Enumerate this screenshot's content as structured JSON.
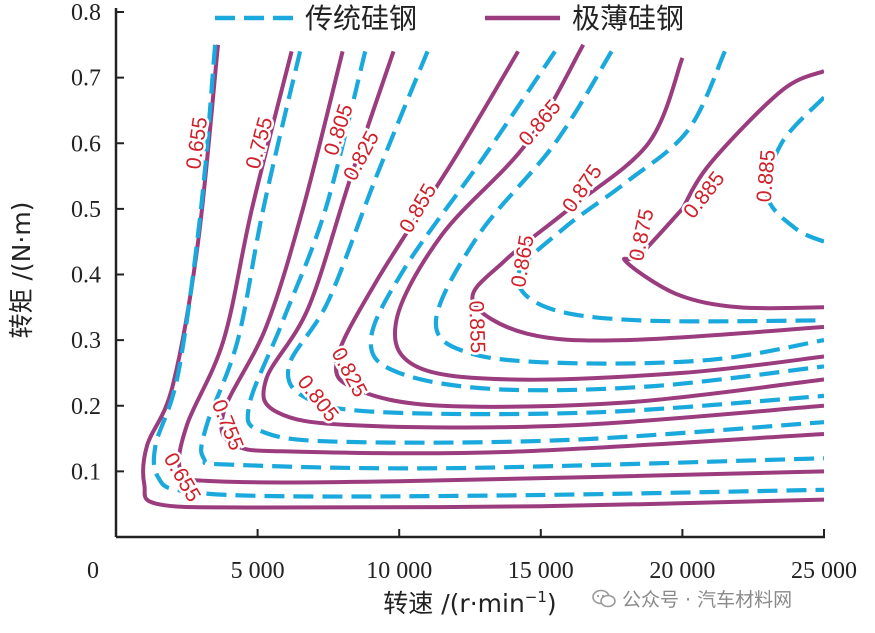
{
  "colors": {
    "traditional": "#1AA9DD",
    "ultrathin": "#9A3C7E",
    "label": "#D0202A",
    "axis": "#222222"
  },
  "watermark": {
    "text": "公众号 · 汽车材料网"
  },
  "chart_data": {
    "type": "line",
    "subtype": "efficiency-contour",
    "xlabel": "转速 /(r·min",
    "xlabel_sup": "−1",
    "xlabel_end": ")",
    "ylabel": "转矩 /(N·m)",
    "xlim": [
      0,
      25000
    ],
    "ylim": [
      0,
      0.8
    ],
    "x_ticks": [
      {
        "value": 0,
        "label": "0"
      },
      {
        "value": 5000,
        "label": "5 000"
      },
      {
        "value": 10000,
        "label": "10 000"
      },
      {
        "value": 15000,
        "label": "15 000"
      },
      {
        "value": 20000,
        "label": "20 000"
      },
      {
        "value": 25000,
        "label": "25 000"
      }
    ],
    "y_ticks": [
      {
        "value": 0.1,
        "label": "0.1"
      },
      {
        "value": 0.2,
        "label": "0.2"
      },
      {
        "value": 0.3,
        "label": "0.3"
      },
      {
        "value": 0.4,
        "label": "0.4"
      },
      {
        "value": 0.5,
        "label": "0.5"
      },
      {
        "value": 0.6,
        "label": "0.6"
      },
      {
        "value": 0.7,
        "label": "0.7"
      },
      {
        "value": 0.8,
        "label": "0.8"
      }
    ],
    "legend": {
      "position": "top",
      "items": [
        {
          "label": "传统硅钢",
          "style": "dashed",
          "color": "#1AA9DD"
        },
        {
          "label": "极薄硅钢",
          "style": "solid",
          "color": "#9A3C7E"
        }
      ]
    },
    "series": [
      {
        "name": "极薄硅钢",
        "level": 0.655,
        "style": "solid",
        "points": [
          [
            3600,
            0.75
          ],
          [
            2900,
            0.45
          ],
          [
            2000,
            0.23
          ],
          [
            1100,
            0.14
          ],
          [
            1000,
            0.08
          ],
          [
            1500,
            0.05
          ],
          [
            5000,
            0.045
          ],
          [
            15000,
            0.047
          ],
          [
            25000,
            0.057
          ]
        ]
      },
      {
        "name": "极薄硅钢",
        "level": 0.755,
        "style": "solid",
        "points": [
          [
            6200,
            0.74
          ],
          [
            4800,
            0.5
          ],
          [
            3800,
            0.3
          ],
          [
            2500,
            0.17
          ],
          [
            2300,
            0.1
          ],
          [
            3500,
            0.085
          ],
          [
            10000,
            0.085
          ],
          [
            25000,
            0.1
          ]
        ]
      },
      {
        "name": "极薄硅钢",
        "level": 0.805,
        "style": "solid",
        "points": [
          [
            8000,
            0.74
          ],
          [
            6600,
            0.5
          ],
          [
            5300,
            0.32
          ],
          [
            3800,
            0.19
          ],
          [
            4200,
            0.14
          ],
          [
            6500,
            0.13
          ],
          [
            14000,
            0.13
          ],
          [
            25000,
            0.157
          ]
        ]
      },
      {
        "name": "极薄硅钢",
        "level": 0.825,
        "style": "solid",
        "points": [
          [
            9800,
            0.74
          ],
          [
            8300,
            0.55
          ],
          [
            6800,
            0.35
          ],
          [
            5300,
            0.24
          ],
          [
            5700,
            0.19
          ],
          [
            8500,
            0.17
          ],
          [
            16000,
            0.17
          ],
          [
            25000,
            0.2
          ]
        ]
      },
      {
        "name": "极薄硅钢",
        "level": 0.855,
        "style": "solid",
        "points": [
          [
            14200,
            0.74
          ],
          [
            12000,
            0.58
          ],
          [
            9200,
            0.39
          ],
          [
            7800,
            0.27
          ],
          [
            8500,
            0.225
          ],
          [
            11500,
            0.2
          ],
          [
            18000,
            0.205
          ],
          [
            25000,
            0.24
          ]
        ]
      },
      {
        "name": "极薄硅钢",
        "level": 0.865,
        "style": "solid",
        "points": [
          [
            16500,
            0.75
          ],
          [
            14500,
            0.6
          ],
          [
            11500,
            0.46
          ],
          [
            9900,
            0.33
          ],
          [
            10600,
            0.26
          ],
          [
            14000,
            0.24
          ],
          [
            20000,
            0.25
          ],
          [
            25000,
            0.275
          ]
        ]
      },
      {
        "name": "极薄硅钢",
        "level": 0.875,
        "style": "solid",
        "points": [
          [
            20000,
            0.73
          ],
          [
            18800,
            0.6
          ],
          [
            16000,
            0.5
          ],
          [
            13700,
            0.42
          ],
          [
            12600,
            0.36
          ],
          [
            14500,
            0.31
          ],
          [
            18000,
            0.3
          ],
          [
            25000,
            0.32
          ]
        ]
      },
      {
        "name": "极薄硅钢",
        "level": 0.885,
        "style": "solid",
        "points": [
          [
            20000,
            0.5
          ],
          [
            18500,
            0.43
          ],
          [
            18000,
            0.42
          ],
          [
            19800,
            0.37
          ],
          [
            22000,
            0.35
          ],
          [
            25000,
            0.35
          ]
        ]
      },
      {
        "name": "极薄硅钢",
        "level": 0.885,
        "style": "solid",
        "points": [
          [
            25000,
            0.71
          ],
          [
            23500,
            0.68
          ],
          [
            21000,
            0.57
          ],
          [
            20000,
            0.5
          ]
        ]
      },
      {
        "name": "传统硅钢",
        "level": 0.655,
        "style": "dashed",
        "points": [
          [
            3500,
            0.75
          ],
          [
            3000,
            0.5
          ],
          [
            2200,
            0.25
          ],
          [
            1400,
            0.14
          ],
          [
            1500,
            0.09
          ],
          [
            2400,
            0.07
          ],
          [
            6000,
            0.062
          ],
          [
            15000,
            0.064
          ],
          [
            25000,
            0.072
          ]
        ]
      },
      {
        "name": "传统硅钢",
        "level": 0.755,
        "style": "dashed",
        "points": [
          [
            6500,
            0.74
          ],
          [
            5200,
            0.5
          ],
          [
            4300,
            0.3
          ],
          [
            3200,
            0.17
          ],
          [
            3100,
            0.12
          ],
          [
            4200,
            0.11
          ],
          [
            12000,
            0.105
          ],
          [
            25000,
            0.12
          ]
        ]
      },
      {
        "name": "传统硅钢",
        "level": 0.805,
        "style": "dashed",
        "points": [
          [
            8800,
            0.74
          ],
          [
            7400,
            0.5
          ],
          [
            5900,
            0.33
          ],
          [
            4700,
            0.2
          ],
          [
            5200,
            0.16
          ],
          [
            8000,
            0.145
          ],
          [
            16000,
            0.148
          ],
          [
            25000,
            0.175
          ]
        ]
      },
      {
        "name": "传统硅钢",
        "level": 0.825,
        "style": "dashed",
        "points": [
          [
            11000,
            0.74
          ],
          [
            9200,
            0.55
          ],
          [
            7500,
            0.36
          ],
          [
            6100,
            0.26
          ],
          [
            6800,
            0.21
          ],
          [
            9500,
            0.19
          ],
          [
            17000,
            0.19
          ],
          [
            25000,
            0.215
          ]
        ]
      },
      {
        "name": "传统硅钢",
        "level": 0.855,
        "style": "dashed",
        "points": [
          [
            15500,
            0.74
          ],
          [
            13000,
            0.58
          ],
          [
            10200,
            0.41
          ],
          [
            9000,
            0.3
          ],
          [
            10000,
            0.25
          ],
          [
            13500,
            0.225
          ],
          [
            19000,
            0.23
          ],
          [
            25000,
            0.26
          ]
        ]
      },
      {
        "name": "传统硅钢",
        "level": 0.865,
        "style": "dashed",
        "points": [
          [
            17500,
            0.74
          ],
          [
            15500,
            0.6
          ],
          [
            12800,
            0.46
          ],
          [
            11300,
            0.33
          ],
          [
            12500,
            0.28
          ],
          [
            16000,
            0.265
          ],
          [
            21000,
            0.27
          ],
          [
            25000,
            0.3
          ]
        ]
      },
      {
        "name": "传统硅钢",
        "level": 0.875,
        "style": "dashed",
        "points": [
          [
            21500,
            0.74
          ],
          [
            20200,
            0.62
          ],
          [
            18000,
            0.54
          ],
          [
            15800,
            0.47
          ],
          [
            14200,
            0.4
          ],
          [
            15200,
            0.35
          ],
          [
            18500,
            0.33
          ],
          [
            25000,
            0.33
          ]
        ]
      },
      {
        "name": "传统硅钢",
        "level": 0.885,
        "style": "dashed",
        "points": [
          [
            25000,
            0.67
          ],
          [
            23500,
            0.6
          ],
          [
            23000,
            0.52
          ],
          [
            24000,
            0.47
          ],
          [
            25000,
            0.45
          ]
        ]
      }
    ],
    "contour_labels": [
      {
        "text": "0.655",
        "x": 2900,
        "y": 0.6,
        "rotation": -82
      },
      {
        "text": "0.755",
        "x": 5100,
        "y": 0.6,
        "rotation": -75
      },
      {
        "text": "0.805",
        "x": 7900,
        "y": 0.62,
        "rotation": -72
      },
      {
        "text": "0.825",
        "x": 8700,
        "y": 0.58,
        "rotation": -62
      },
      {
        "text": "0.855",
        "x": 10700,
        "y": 0.5,
        "rotation": -60
      },
      {
        "text": "0.865",
        "x": 15000,
        "y": 0.63,
        "rotation": -50
      },
      {
        "text": "0.875",
        "x": 16500,
        "y": 0.53,
        "rotation": -55
      },
      {
        "text": "0.875",
        "x": 18600,
        "y": 0.46,
        "rotation": -78
      },
      {
        "text": "0.885",
        "x": 20800,
        "y": 0.52,
        "rotation": -52
      },
      {
        "text": "0.885",
        "x": 23000,
        "y": 0.55,
        "rotation": -85
      },
      {
        "text": "0.855",
        "x": 12700,
        "y": 0.32,
        "rotation": 88
      },
      {
        "text": "0.865",
        "x": 14400,
        "y": 0.42,
        "rotation": -80
      },
      {
        "text": "0.825",
        "x": 8200,
        "y": 0.25,
        "rotation": 62
      },
      {
        "text": "0.805",
        "x": 7100,
        "y": 0.21,
        "rotation": 52
      },
      {
        "text": "0.755",
        "x": 3900,
        "y": 0.17,
        "rotation": 68
      },
      {
        "text": "0.655",
        "x": 2300,
        "y": 0.09,
        "rotation": 60
      }
    ]
  }
}
